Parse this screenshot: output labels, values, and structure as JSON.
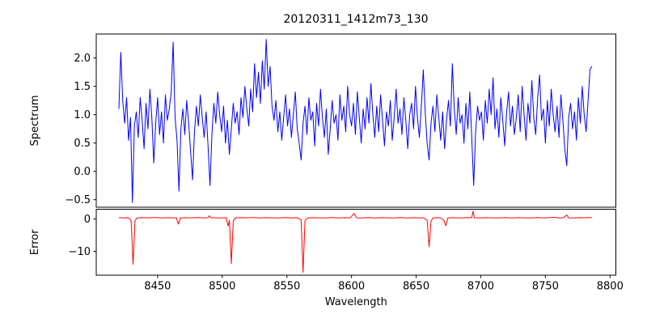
{
  "title": "20120311_1412m73_130",
  "chart_data": [
    {
      "type": "line",
      "name": "spectrum",
      "ylabel": "Spectrum",
      "line_color": "#0000ff",
      "xlim": [
        8402.5,
        8804.5
      ],
      "ylim": [
        -0.633,
        2.424
      ],
      "axes_rect": [
        119,
        42,
        642.5,
        214
      ],
      "yticks": [
        2.0,
        1.5,
        1.0,
        0.5,
        0.0,
        -0.5
      ],
      "ytick_labels": [
        "2.0",
        "1.5",
        "1.0",
        "0.5",
        "0.0",
        "−0.5"
      ],
      "grid": false,
      "x_start": 8420,
      "x_step": 1.5,
      "values": [
        1.1,
        2.1,
        1.25,
        0.85,
        1.3,
        0.55,
        0.95,
        -0.55,
        0.8,
        1.05,
        0.6,
        1.3,
        0.9,
        0.4,
        1.2,
        0.75,
        1.45,
        0.95,
        0.15,
        0.85,
        1.3,
        0.65,
        1.05,
        0.5,
        1.35,
        0.9,
        1.1,
        1.4,
        2.28,
        0.95,
        0.55,
        -0.35,
        0.75,
        1.1,
        0.65,
        1.25,
        0.85,
        0.35,
        -0.15,
        0.7,
        1.15,
        0.8,
        1.35,
        0.95,
        0.6,
        1.05,
        0.45,
        -0.25,
        0.65,
        1.2,
        0.85,
        1.4,
        1.0,
        0.7,
        1.15,
        0.5,
        0.9,
        0.3,
        0.75,
        1.2,
        0.85,
        1.05,
        0.65,
        1.3,
        0.95,
        1.5,
        1.1,
        0.8,
        1.45,
        1.05,
        1.9,
        1.3,
        1.75,
        1.2,
        1.95,
        1.45,
        2.33,
        1.5,
        1.85,
        1.15,
        0.9,
        1.25,
        0.7,
        1.05,
        0.55,
        0.95,
        1.35,
        0.8,
        1.1,
        0.6,
        1.0,
        1.4,
        0.75,
        0.5,
        0.2,
        0.85,
        1.15,
        0.65,
        1.3,
        0.9,
        1.05,
        0.45,
        1.2,
        0.8,
        1.45,
        0.95,
        0.6,
        1.1,
        0.3,
        0.75,
        1.25,
        0.85,
        1.0,
        0.55,
        1.35,
        0.9,
        1.15,
        0.7,
        1.5,
        1.0,
        0.8,
        1.2,
        0.65,
        1.4,
        0.95,
        0.5,
        1.1,
        0.75,
        1.3,
        0.85,
        1.55,
        1.0,
        0.6,
        1.15,
        0.7,
        1.35,
        0.9,
        0.45,
        1.05,
        0.8,
        1.25,
        0.55,
        0.95,
        1.45,
        0.85,
        1.1,
        0.65,
        1.3,
        0.9,
        0.4,
        1.0,
        1.2,
        0.75,
        1.5,
        0.95,
        0.6,
        1.15,
        1.79,
        1.05,
        0.5,
        0.2,
        0.85,
        1.15,
        0.7,
        1.35,
        0.95,
        0.55,
        1.05,
        0.4,
        0.9,
        1.25,
        0.8,
        1.9,
        1.1,
        0.65,
        1.3,
        0.85,
        1.0,
        0.5,
        1.2,
        0.75,
        1.4,
        0.6,
        -0.25,
        0.7,
        1.15,
        0.9,
        1.05,
        0.55,
        1.25,
        0.85,
        1.45,
        1.0,
        1.65,
        0.75,
        1.1,
        0.6,
        1.3,
        0.9,
        0.45,
        1.05,
        1.4,
        0.8,
        1.15,
        0.65,
        0.95,
        1.35,
        0.7,
        1.5,
        1.0,
        0.55,
        1.2,
        0.85,
        1.6,
        0.95,
        0.65,
        1.3,
        1.7,
        0.9,
        1.1,
        0.5,
        1.25,
        0.8,
        1.45,
        1.0,
        0.7,
        1.15,
        0.6,
        1.35,
        0.9,
        0.4,
        0.1,
        0.95,
        1.2,
        0.75,
        1.05,
        0.55,
        1.3,
        0.85,
        1.5,
        1.0,
        0.7,
        1.25,
        1.8,
        1.85
      ]
    },
    {
      "type": "line",
      "name": "error",
      "ylabel": "Error",
      "xlabel": "Wavelength",
      "line_color": "#ff0000",
      "xlim": [
        8402.5,
        8804.5
      ],
      "ylim": [
        -17.375,
        3.0
      ],
      "axes_rect": [
        119,
        258.5,
        642.5,
        81.5
      ],
      "yticks": [
        0,
        -10
      ],
      "ytick_labels": [
        "0",
        "−10"
      ],
      "xticks": [
        8450,
        8500,
        8550,
        8600,
        8650,
        8700,
        8750,
        8800
      ],
      "xtick_labels": [
        "8450",
        "8500",
        "8550",
        "8600",
        "8650",
        "8700",
        "8750",
        "8800"
      ],
      "grid": false,
      "points": [
        [
          8420,
          0.4
        ],
        [
          8424,
          0.3
        ],
        [
          8427,
          0.45
        ],
        [
          8429.5,
          -0.5
        ],
        [
          8431,
          -14.0
        ],
        [
          8432.5,
          -0.6
        ],
        [
          8434,
          0.3
        ],
        [
          8438,
          0.4
        ],
        [
          8443,
          0.35
        ],
        [
          8448,
          0.45
        ],
        [
          8453,
          0.3
        ],
        [
          8458,
          0.4
        ],
        [
          8462,
          0.35
        ],
        [
          8464.5,
          0.3
        ],
        [
          8466,
          -1.6
        ],
        [
          8467.5,
          0.3
        ],
        [
          8471,
          0.4
        ],
        [
          8476,
          0.35
        ],
        [
          8481,
          0.45
        ],
        [
          8486,
          0.3
        ],
        [
          8489,
          0.4
        ],
        [
          8490,
          1.0
        ],
        [
          8491,
          0.4
        ],
        [
          8495,
          0.35
        ],
        [
          8499,
          0.3
        ],
        [
          8503,
          0.4
        ],
        [
          8504.5,
          -2.2
        ],
        [
          8505.5,
          -0.4
        ],
        [
          8507,
          -13.8
        ],
        [
          8508.5,
          -0.7
        ],
        [
          8510,
          0.3
        ],
        [
          8514,
          0.4
        ],
        [
          8519,
          0.35
        ],
        [
          8524,
          0.45
        ],
        [
          8529,
          0.3
        ],
        [
          8534,
          0.4
        ],
        [
          8539,
          0.35
        ],
        [
          8544,
          0.3
        ],
        [
          8549,
          0.45
        ],
        [
          8554,
          0.3
        ],
        [
          8558,
          0.4
        ],
        [
          8561,
          -0.3
        ],
        [
          8562.5,
          -16.5
        ],
        [
          8564,
          -0.5
        ],
        [
          8566,
          0.3
        ],
        [
          8570,
          0.4
        ],
        [
          8575,
          0.35
        ],
        [
          8580,
          0.3
        ],
        [
          8585,
          0.45
        ],
        [
          8590,
          0.3
        ],
        [
          8595,
          0.4
        ],
        [
          8599,
          0.35
        ],
        [
          8602,
          1.7
        ],
        [
          8604,
          0.35
        ],
        [
          8608,
          0.3
        ],
        [
          8613,
          0.45
        ],
        [
          8618,
          0.3
        ],
        [
          8623,
          0.4
        ],
        [
          8628,
          0.35
        ],
        [
          8633,
          0.3
        ],
        [
          8638,
          0.45
        ],
        [
          8643,
          0.3
        ],
        [
          8648,
          0.4
        ],
        [
          8652,
          0.35
        ],
        [
          8656,
          0.3
        ],
        [
          8658.5,
          -0.4
        ],
        [
          8660,
          -8.6
        ],
        [
          8661.5,
          -0.7
        ],
        [
          8663,
          0.3
        ],
        [
          8666,
          0.4
        ],
        [
          8669,
          0.35
        ],
        [
          8671.5,
          -0.5
        ],
        [
          8673,
          -2.1
        ],
        [
          8674.5,
          0.3
        ],
        [
          8678,
          0.4
        ],
        [
          8682,
          0.35
        ],
        [
          8686,
          0.3
        ],
        [
          8690,
          0.45
        ],
        [
          8693,
          0.4
        ],
        [
          8694,
          2.4
        ],
        [
          8695,
          0.4
        ],
        [
          8699,
          0.3
        ],
        [
          8704,
          0.4
        ],
        [
          8709,
          0.35
        ],
        [
          8714,
          0.3
        ],
        [
          8719,
          0.45
        ],
        [
          8724,
          0.3
        ],
        [
          8729,
          0.4
        ],
        [
          8734,
          0.35
        ],
        [
          8739,
          0.3
        ],
        [
          8744,
          0.45
        ],
        [
          8749,
          0.3
        ],
        [
          8753,
          0.4
        ],
        [
          8757,
          0.5
        ],
        [
          8761,
          0.3
        ],
        [
          8764,
          0.4
        ],
        [
          8766.5,
          1.2
        ],
        [
          8768,
          0.35
        ],
        [
          8772,
          0.3
        ],
        [
          8776,
          0.4
        ],
        [
          8780,
          0.35
        ],
        [
          8783,
          0.45
        ],
        [
          8786,
          0.4
        ]
      ]
    }
  ],
  "style": {
    "background": "#ffffff",
    "spine_color": "#000000",
    "tick_color": "#000000"
  }
}
